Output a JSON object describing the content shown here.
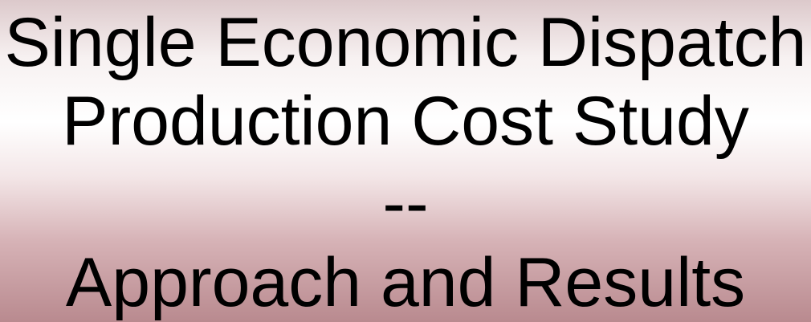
{
  "title": {
    "lines": [
      "Single Economic Dispatch",
      "Production Cost Study",
      "--",
      "Approach and Results"
    ]
  }
}
